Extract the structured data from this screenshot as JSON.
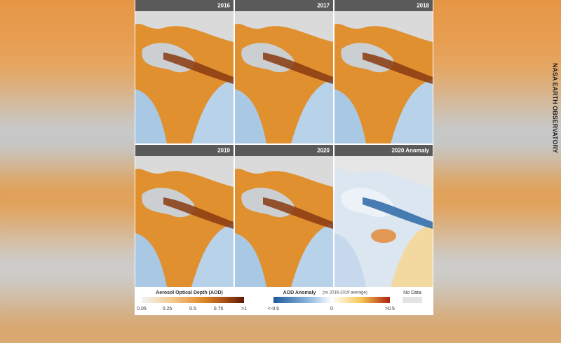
{
  "panels": [
    {
      "label": "2016"
    },
    {
      "label": "2017"
    },
    {
      "label": "2018"
    },
    {
      "label": "2019"
    },
    {
      "label": "2020"
    },
    {
      "label": "2020 Anomaly"
    }
  ],
  "legend": {
    "aod": {
      "title": "Aerosol Optical Depth (AOD)",
      "ticks": [
        "0.05",
        "0.25",
        "0.5",
        "0.75",
        ">1"
      ]
    },
    "anomaly": {
      "title": "AOD Anomaly",
      "subtitle": "(vs 2016-2019 average)",
      "ticks": [
        "<-0.5",
        "0",
        ">0.5"
      ]
    },
    "no_data": "No Data"
  },
  "credit": "NASA EARTH OBSERVATORY"
}
